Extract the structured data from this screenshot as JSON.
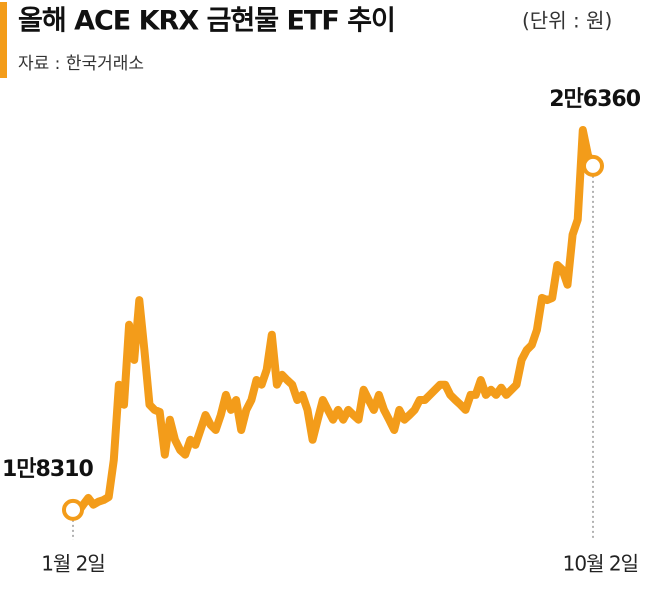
{
  "chart_data": {
    "type": "line",
    "title": "올해 ACE KRX 금현물 ETF 추이",
    "unit_note": "(단위 : 원)",
    "source": "자료 : 한국거래소",
    "color": "#f39c1a",
    "categories": [
      "1월 2일",
      null,
      null,
      null,
      null,
      null,
      null,
      null,
      null,
      null,
      null,
      null,
      null,
      null,
      null,
      null,
      null,
      null,
      null,
      null,
      null,
      null,
      null,
      null,
      null,
      null,
      null,
      null,
      null,
      null,
      null,
      null,
      null,
      null,
      null,
      null,
      null,
      null,
      null,
      null,
      null,
      null,
      null,
      null,
      null,
      null,
      null,
      null,
      null,
      null,
      null,
      null,
      null,
      null,
      null,
      null,
      null,
      null,
      null,
      null,
      null,
      null,
      null,
      null,
      null,
      null,
      null,
      null,
      null,
      null,
      null,
      null,
      null,
      null,
      null,
      null,
      null,
      null,
      null,
      null,
      null,
      null,
      null,
      null,
      null,
      null,
      null,
      null,
      null,
      null,
      null,
      null,
      null,
      null,
      null,
      null,
      null,
      null,
      null,
      null,
      null,
      null,
      "10월 2일"
    ],
    "values": [
      18310,
      18260,
      18430,
      18590,
      18430,
      18500,
      18540,
      18610,
      19480,
      21240,
      20770,
      22640,
      21820,
      23220,
      22050,
      20770,
      20650,
      20600,
      19600,
      20420,
      19950,
      19710,
      19600,
      19950,
      19830,
      20180,
      20530,
      20300,
      20180,
      20530,
      21000,
      20650,
      20880,
      20180,
      20650,
      20880,
      21350,
      21240,
      21590,
      22410,
      21240,
      21470,
      21350,
      21240,
      20880,
      21000,
      20650,
      19950,
      20420,
      20880,
      20650,
      20420,
      20650,
      20420,
      20650,
      20530,
      20420,
      21120,
      20880,
      20650,
      21000,
      20650,
      20420,
      20180,
      20650,
      20420,
      20530,
      20650,
      20880,
      20880,
      21000,
      21120,
      21240,
      21240,
      21000,
      20880,
      20770,
      20650,
      21000,
      21000,
      21350,
      21000,
      21120,
      21000,
      21170,
      21000,
      21120,
      21240,
      21820,
      22050,
      22170,
      22520,
      23270,
      23220,
      23270,
      24040,
      23930,
      23580,
      24750,
      25100,
      27200,
      26620,
      26360
    ],
    "value_labels": [
      "1만8310",
      null,
      null,
      null,
      null,
      null,
      null,
      null,
      null,
      null,
      null,
      null,
      null,
      null,
      null,
      null,
      null,
      null,
      null,
      null,
      null,
      null,
      null,
      null,
      null,
      null,
      null,
      null,
      null,
      null,
      null,
      null,
      null,
      null,
      null,
      null,
      null,
      null,
      null,
      null,
      null,
      null,
      null,
      null,
      null,
      null,
      null,
      null,
      null,
      null,
      null,
      null,
      null,
      null,
      null,
      null,
      null,
      null,
      null,
      null,
      null,
      null,
      null,
      null,
      null,
      null,
      null,
      null,
      null,
      null,
      null,
      null,
      null,
      null,
      null,
      null,
      null,
      null,
      null,
      null,
      null,
      null,
      null,
      null,
      null,
      null,
      null,
      null,
      null,
      null,
      null,
      null,
      null,
      null,
      null,
      null,
      null,
      null,
      null,
      null,
      null,
      null,
      "2만6360"
    ]
  }
}
